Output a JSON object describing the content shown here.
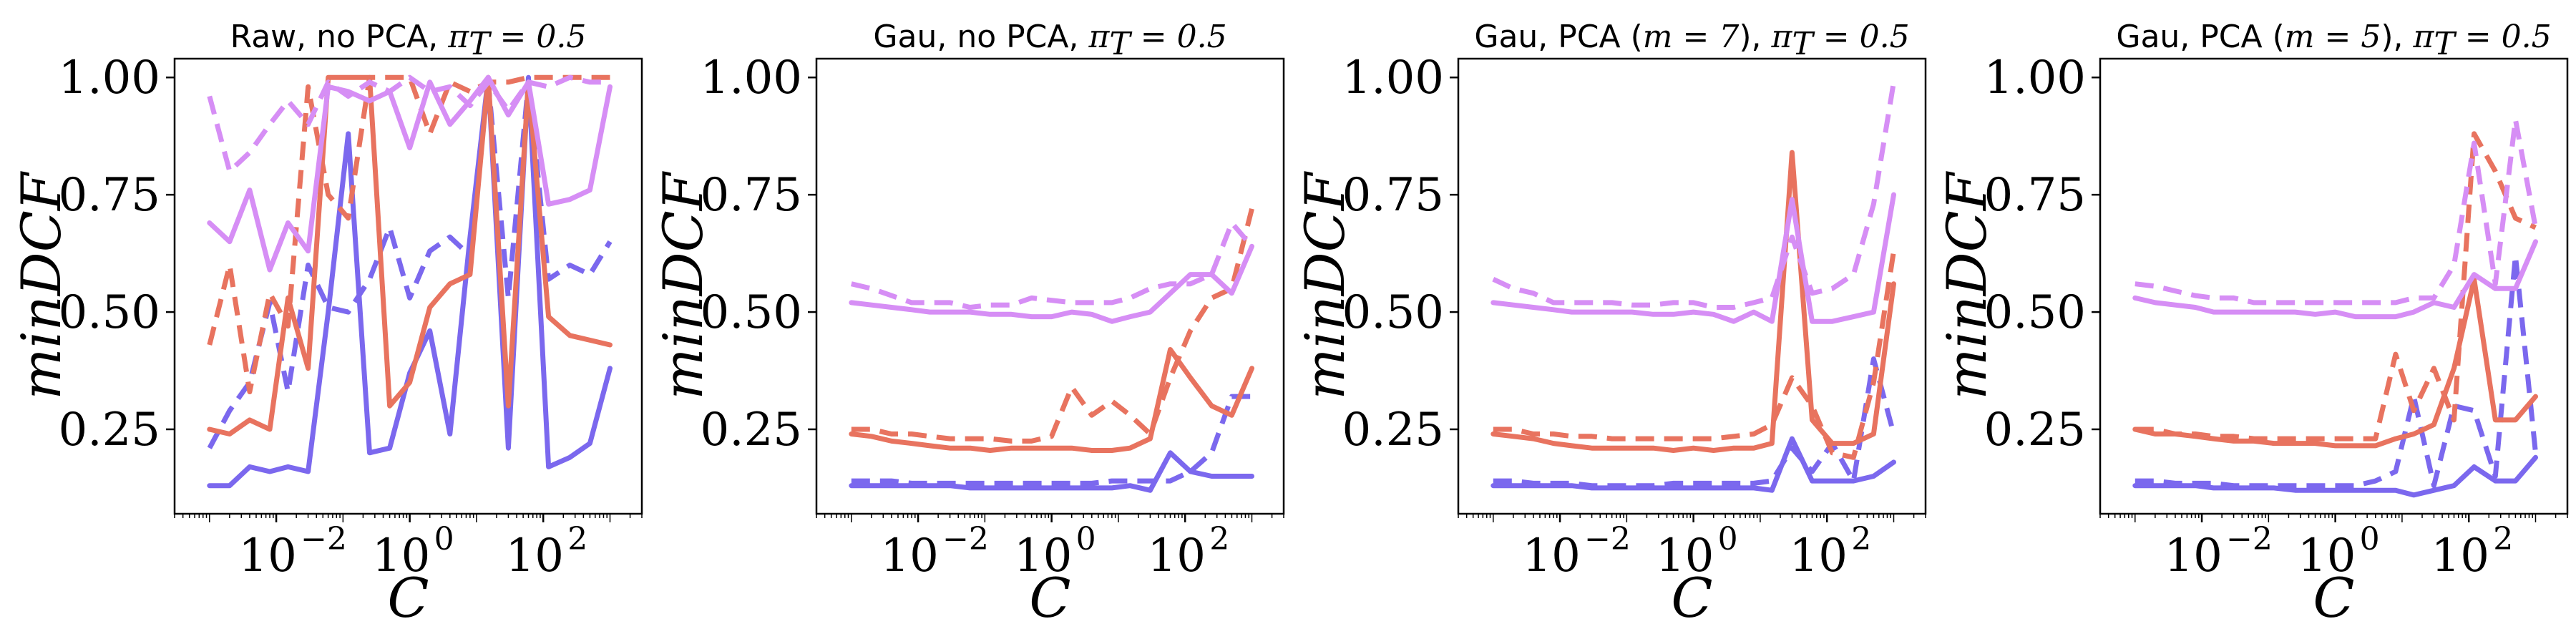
{
  "chart_data": [
    {
      "type": "line",
      "title_prefix": "Raw, no PCA, ",
      "title_math": "π",
      "title_sub": "T",
      "title_suffix": " = 0.5",
      "xlabel": "C",
      "ylabel": "minDCF",
      "xscale": "log",
      "xlim": [
        0.0003,
        3000
      ],
      "ylim": [
        0.07,
        1.04
      ],
      "xticks": [
        {
          "exp": "−2",
          "value": 0.01
        },
        {
          "exp": "0",
          "value": 1
        },
        {
          "exp": "2",
          "value": 100
        }
      ],
      "yticks": [
        "0.25",
        "0.50",
        "0.75",
        "1.00"
      ],
      "x": [
        0.001,
        0.002,
        0.004,
        0.008,
        0.015,
        0.03,
        0.06,
        0.12,
        0.25,
        0.5,
        1,
        2,
        4,
        8,
        15,
        30,
        60,
        120,
        250,
        500,
        1000
      ],
      "series": [
        {
          "color": "#7b68ee",
          "dash": false,
          "values": [
            0.13,
            0.13,
            0.17,
            0.16,
            0.17,
            0.16,
            0.5,
            0.88,
            0.2,
            0.21,
            0.37,
            0.46,
            0.24,
            0.66,
            1.0,
            0.21,
            1.0,
            0.17,
            0.19,
            0.22,
            0.38
          ]
        },
        {
          "color": "#7b68ee",
          "dash": true,
          "values": [
            0.21,
            0.29,
            0.35,
            0.52,
            0.33,
            0.6,
            0.51,
            0.5,
            0.57,
            0.68,
            0.53,
            0.63,
            0.66,
            0.62,
            0.99,
            0.53,
            0.99,
            0.57,
            0.6,
            0.58,
            0.65
          ]
        },
        {
          "color": "#e8735f",
          "dash": false,
          "values": [
            0.25,
            0.24,
            0.27,
            0.25,
            0.53,
            0.38,
            1.0,
            1.0,
            1.0,
            0.3,
            0.35,
            0.51,
            0.56,
            0.58,
            1.0,
            0.3,
            0.99,
            0.49,
            0.45,
            0.44,
            0.43
          ]
        },
        {
          "color": "#e8735f",
          "dash": true,
          "values": [
            0.43,
            0.6,
            0.33,
            0.54,
            0.47,
            0.98,
            0.75,
            0.7,
            1.0,
            1.0,
            1.0,
            0.88,
            0.99,
            0.97,
            0.99,
            0.99,
            1.0,
            1.0,
            1.0,
            1.0,
            1.0
          ]
        },
        {
          "color": "#d68ef5",
          "dash": false,
          "values": [
            0.69,
            0.65,
            0.76,
            0.59,
            0.69,
            0.63,
            0.98,
            0.97,
            0.95,
            0.97,
            0.85,
            0.99,
            0.9,
            0.95,
            1.0,
            0.92,
            0.99,
            0.73,
            0.74,
            0.76,
            0.98
          ]
        },
        {
          "color": "#d68ef5",
          "dash": true,
          "values": [
            0.96,
            0.8,
            0.84,
            0.9,
            0.95,
            0.9,
            0.99,
            0.96,
            0.99,
            0.97,
            1.0,
            0.97,
            0.98,
            0.94,
            0.99,
            0.93,
            0.99,
            0.98,
            1.0,
            0.99,
            0.99
          ]
        }
      ]
    },
    {
      "type": "line",
      "title_prefix": "Gau, no PCA, ",
      "title_math": "π",
      "title_sub": "T",
      "title_suffix": " = 0.5",
      "xlabel": "C",
      "ylabel": "minDCF",
      "xscale": "log",
      "xlim": [
        0.0003,
        3000
      ],
      "ylim": [
        0.07,
        1.04
      ],
      "xticks": [
        {
          "exp": "−2",
          "value": 0.01
        },
        {
          "exp": "0",
          "value": 1
        },
        {
          "exp": "2",
          "value": 100
        }
      ],
      "yticks": [
        "0.25",
        "0.50",
        "0.75",
        "1.00"
      ],
      "x": [
        0.001,
        0.002,
        0.004,
        0.008,
        0.015,
        0.03,
        0.06,
        0.12,
        0.25,
        0.5,
        1,
        2,
        4,
        8,
        15,
        30,
        60,
        120,
        250,
        500,
        1000
      ],
      "series": [
        {
          "color": "#7b68ee",
          "dash": false,
          "values": [
            0.13,
            0.13,
            0.13,
            0.13,
            0.13,
            0.13,
            0.125,
            0.125,
            0.125,
            0.125,
            0.125,
            0.125,
            0.125,
            0.125,
            0.13,
            0.12,
            0.2,
            0.16,
            0.15,
            0.15,
            0.15
          ]
        },
        {
          "color": "#7b68ee",
          "dash": true,
          "values": [
            0.14,
            0.14,
            0.14,
            0.135,
            0.135,
            0.135,
            0.135,
            0.135,
            0.135,
            0.135,
            0.135,
            0.135,
            0.135,
            0.14,
            0.14,
            0.14,
            0.14,
            0.16,
            0.2,
            0.32,
            0.32
          ]
        },
        {
          "color": "#e8735f",
          "dash": false,
          "values": [
            0.24,
            0.235,
            0.225,
            0.22,
            0.215,
            0.21,
            0.21,
            0.205,
            0.21,
            0.21,
            0.21,
            0.21,
            0.205,
            0.205,
            0.21,
            0.23,
            0.42,
            0.36,
            0.3,
            0.28,
            0.38
          ]
        },
        {
          "color": "#e8735f",
          "dash": true,
          "values": [
            0.25,
            0.25,
            0.24,
            0.24,
            0.235,
            0.23,
            0.23,
            0.23,
            0.225,
            0.225,
            0.235,
            0.34,
            0.28,
            0.31,
            0.28,
            0.24,
            0.36,
            0.46,
            0.53,
            0.55,
            0.72
          ]
        },
        {
          "color": "#d68ef5",
          "dash": false,
          "values": [
            0.52,
            0.515,
            0.51,
            0.505,
            0.5,
            0.5,
            0.5,
            0.495,
            0.495,
            0.49,
            0.49,
            0.5,
            0.495,
            0.48,
            0.49,
            0.5,
            0.54,
            0.58,
            0.58,
            0.54,
            0.64
          ]
        },
        {
          "color": "#d68ef5",
          "dash": true,
          "values": [
            0.56,
            0.55,
            0.535,
            0.52,
            0.52,
            0.52,
            0.51,
            0.515,
            0.515,
            0.53,
            0.525,
            0.52,
            0.52,
            0.52,
            0.53,
            0.55,
            0.56,
            0.56,
            0.58,
            0.69,
            0.64
          ]
        }
      ]
    },
    {
      "type": "line",
      "title_prefix": "Gau, PCA (",
      "title_math": "π",
      "title_sub": "T",
      "title_m": "m",
      "title_m_value": " = 7",
      "title_mid": "), ",
      "title_suffix": " = 0.5",
      "xlabel": "C",
      "ylabel": "minDCF",
      "xscale": "log",
      "xlim": [
        0.0003,
        3000
      ],
      "ylim": [
        0.07,
        1.04
      ],
      "xticks": [
        {
          "exp": "−2",
          "value": 0.01
        },
        {
          "exp": "0",
          "value": 1
        },
        {
          "exp": "2",
          "value": 100
        }
      ],
      "yticks": [
        "0.25",
        "0.50",
        "0.75",
        "1.00"
      ],
      "x": [
        0.001,
        0.002,
        0.004,
        0.008,
        0.015,
        0.03,
        0.06,
        0.12,
        0.25,
        0.5,
        1,
        2,
        4,
        8,
        15,
        30,
        60,
        120,
        250,
        500,
        1000
      ],
      "series": [
        {
          "color": "#7b68ee",
          "dash": false,
          "values": [
            0.13,
            0.13,
            0.13,
            0.13,
            0.13,
            0.125,
            0.125,
            0.125,
            0.125,
            0.125,
            0.125,
            0.125,
            0.125,
            0.125,
            0.12,
            0.23,
            0.14,
            0.14,
            0.14,
            0.15,
            0.18
          ]
        },
        {
          "color": "#7b68ee",
          "dash": true,
          "values": [
            0.14,
            0.14,
            0.135,
            0.135,
            0.135,
            0.13,
            0.13,
            0.13,
            0.13,
            0.135,
            0.135,
            0.135,
            0.135,
            0.135,
            0.14,
            0.21,
            0.16,
            0.22,
            0.14,
            0.4,
            0.24
          ]
        },
        {
          "color": "#e8735f",
          "dash": false,
          "values": [
            0.24,
            0.235,
            0.23,
            0.22,
            0.215,
            0.21,
            0.21,
            0.21,
            0.21,
            0.205,
            0.21,
            0.205,
            0.21,
            0.21,
            0.22,
            0.84,
            0.27,
            0.22,
            0.22,
            0.24,
            0.56
          ]
        },
        {
          "color": "#e8735f",
          "dash": true,
          "values": [
            0.25,
            0.25,
            0.24,
            0.24,
            0.235,
            0.235,
            0.23,
            0.23,
            0.23,
            0.23,
            0.23,
            0.23,
            0.235,
            0.24,
            0.26,
            0.36,
            0.3,
            0.2,
            0.19,
            0.35,
            0.63
          ]
        },
        {
          "color": "#d68ef5",
          "dash": false,
          "values": [
            0.52,
            0.515,
            0.51,
            0.505,
            0.5,
            0.5,
            0.5,
            0.5,
            0.495,
            0.495,
            0.5,
            0.495,
            0.48,
            0.5,
            0.48,
            0.74,
            0.48,
            0.48,
            0.49,
            0.5,
            0.75
          ]
        },
        {
          "color": "#d68ef5",
          "dash": true,
          "values": [
            0.57,
            0.55,
            0.54,
            0.52,
            0.52,
            0.52,
            0.52,
            0.515,
            0.515,
            0.52,
            0.52,
            0.51,
            0.51,
            0.52,
            0.53,
            0.66,
            0.54,
            0.55,
            0.58,
            0.73,
            0.99
          ]
        }
      ]
    },
    {
      "type": "line",
      "title_prefix": "Gau, PCA (",
      "title_math": "π",
      "title_sub": "T",
      "title_m": "m",
      "title_m_value": " = 5",
      "title_mid": "), ",
      "title_suffix": " = 0.5",
      "xlabel": "C",
      "ylabel": "minDCF",
      "xscale": "log",
      "xlim": [
        0.0003,
        3000
      ],
      "ylim": [
        0.07,
        1.04
      ],
      "xticks": [
        {
          "exp": "−2",
          "value": 0.01
        },
        {
          "exp": "0",
          "value": 1
        },
        {
          "exp": "2",
          "value": 100
        }
      ],
      "yticks": [
        "0.25",
        "0.50",
        "0.75",
        "1.00"
      ],
      "x": [
        0.001,
        0.002,
        0.004,
        0.008,
        0.015,
        0.03,
        0.06,
        0.12,
        0.25,
        0.5,
        1,
        2,
        4,
        8,
        15,
        30,
        60,
        120,
        250,
        500,
        1000
      ],
      "series": [
        {
          "color": "#7b68ee",
          "dash": false,
          "values": [
            0.13,
            0.13,
            0.13,
            0.13,
            0.125,
            0.125,
            0.125,
            0.125,
            0.12,
            0.12,
            0.12,
            0.12,
            0.12,
            0.12,
            0.11,
            0.12,
            0.13,
            0.17,
            0.14,
            0.14,
            0.19
          ]
        },
        {
          "color": "#7b68ee",
          "dash": true,
          "values": [
            0.14,
            0.14,
            0.135,
            0.135,
            0.135,
            0.13,
            0.13,
            0.13,
            0.13,
            0.13,
            0.13,
            0.13,
            0.14,
            0.16,
            0.32,
            0.13,
            0.3,
            0.29,
            0.15,
            0.62,
            0.2
          ]
        },
        {
          "color": "#e8735f",
          "dash": false,
          "values": [
            0.25,
            0.24,
            0.24,
            0.235,
            0.23,
            0.225,
            0.225,
            0.22,
            0.22,
            0.22,
            0.215,
            0.215,
            0.215,
            0.23,
            0.24,
            0.26,
            0.38,
            0.57,
            0.27,
            0.27,
            0.32
          ]
        },
        {
          "color": "#e8735f",
          "dash": true,
          "values": [
            0.25,
            0.25,
            0.24,
            0.24,
            0.235,
            0.235,
            0.23,
            0.23,
            0.23,
            0.23,
            0.23,
            0.23,
            0.23,
            0.41,
            0.29,
            0.38,
            0.27,
            0.88,
            0.8,
            0.7,
            0.68
          ]
        },
        {
          "color": "#d68ef5",
          "dash": false,
          "values": [
            0.53,
            0.52,
            0.515,
            0.51,
            0.5,
            0.5,
            0.5,
            0.5,
            0.5,
            0.495,
            0.5,
            0.49,
            0.49,
            0.49,
            0.5,
            0.52,
            0.51,
            0.58,
            0.55,
            0.55,
            0.65
          ]
        },
        {
          "color": "#d68ef5",
          "dash": true,
          "values": [
            0.56,
            0.555,
            0.545,
            0.535,
            0.53,
            0.53,
            0.52,
            0.52,
            0.52,
            0.52,
            0.52,
            0.52,
            0.52,
            0.52,
            0.53,
            0.53,
            0.6,
            0.86,
            0.56,
            0.91,
            0.68
          ]
        }
      ]
    }
  ]
}
